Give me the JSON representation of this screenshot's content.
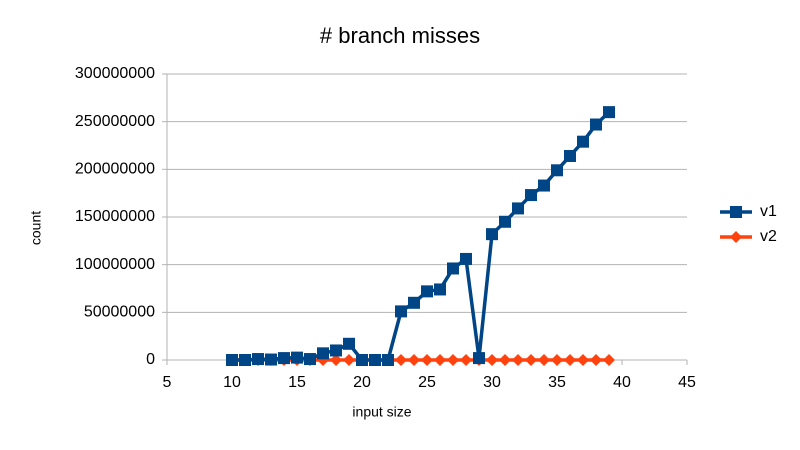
{
  "chart_data": {
    "type": "line",
    "title": "# branch misses",
    "x_label": "input size",
    "y_label": "count",
    "x": [
      10,
      11,
      12,
      13,
      14,
      15,
      16,
      17,
      18,
      19,
      20,
      21,
      22,
      23,
      24,
      25,
      26,
      27,
      28,
      29,
      30,
      31,
      32,
      33,
      34,
      35,
      36,
      37,
      38,
      39
    ],
    "series": [
      {
        "name": "v1",
        "color": "#004586",
        "marker": "square",
        "values": [
          0,
          0,
          1000000,
          500000,
          2000000,
          2500000,
          1000000,
          7000000,
          10000000,
          17000000,
          0,
          0,
          0,
          51000000,
          60000000,
          72000000,
          74000000,
          96000000,
          106000000,
          2000000,
          132000000,
          145000000,
          159000000,
          173000000,
          183000000,
          199000000,
          214000000,
          229000000,
          247000000,
          260000000
        ]
      },
      {
        "name": "v2",
        "color": "#ff420e",
        "marker": "diamond",
        "values": [
          0,
          0,
          0,
          0,
          0,
          0,
          0,
          0,
          0,
          0,
          0,
          0,
          0,
          0,
          0,
          0,
          0,
          0,
          0,
          0,
          0,
          0,
          0,
          0,
          0,
          0,
          0,
          0,
          0,
          0
        ]
      }
    ],
    "xlim": [
      5,
      45
    ],
    "xticks": [
      5,
      10,
      15,
      20,
      25,
      30,
      35,
      40,
      45
    ],
    "ylim": [
      0,
      300000000
    ],
    "yticks": [
      0,
      50000000,
      100000000,
      150000000,
      200000000,
      250000000,
      300000000
    ],
    "grid": true,
    "legend": "right"
  }
}
